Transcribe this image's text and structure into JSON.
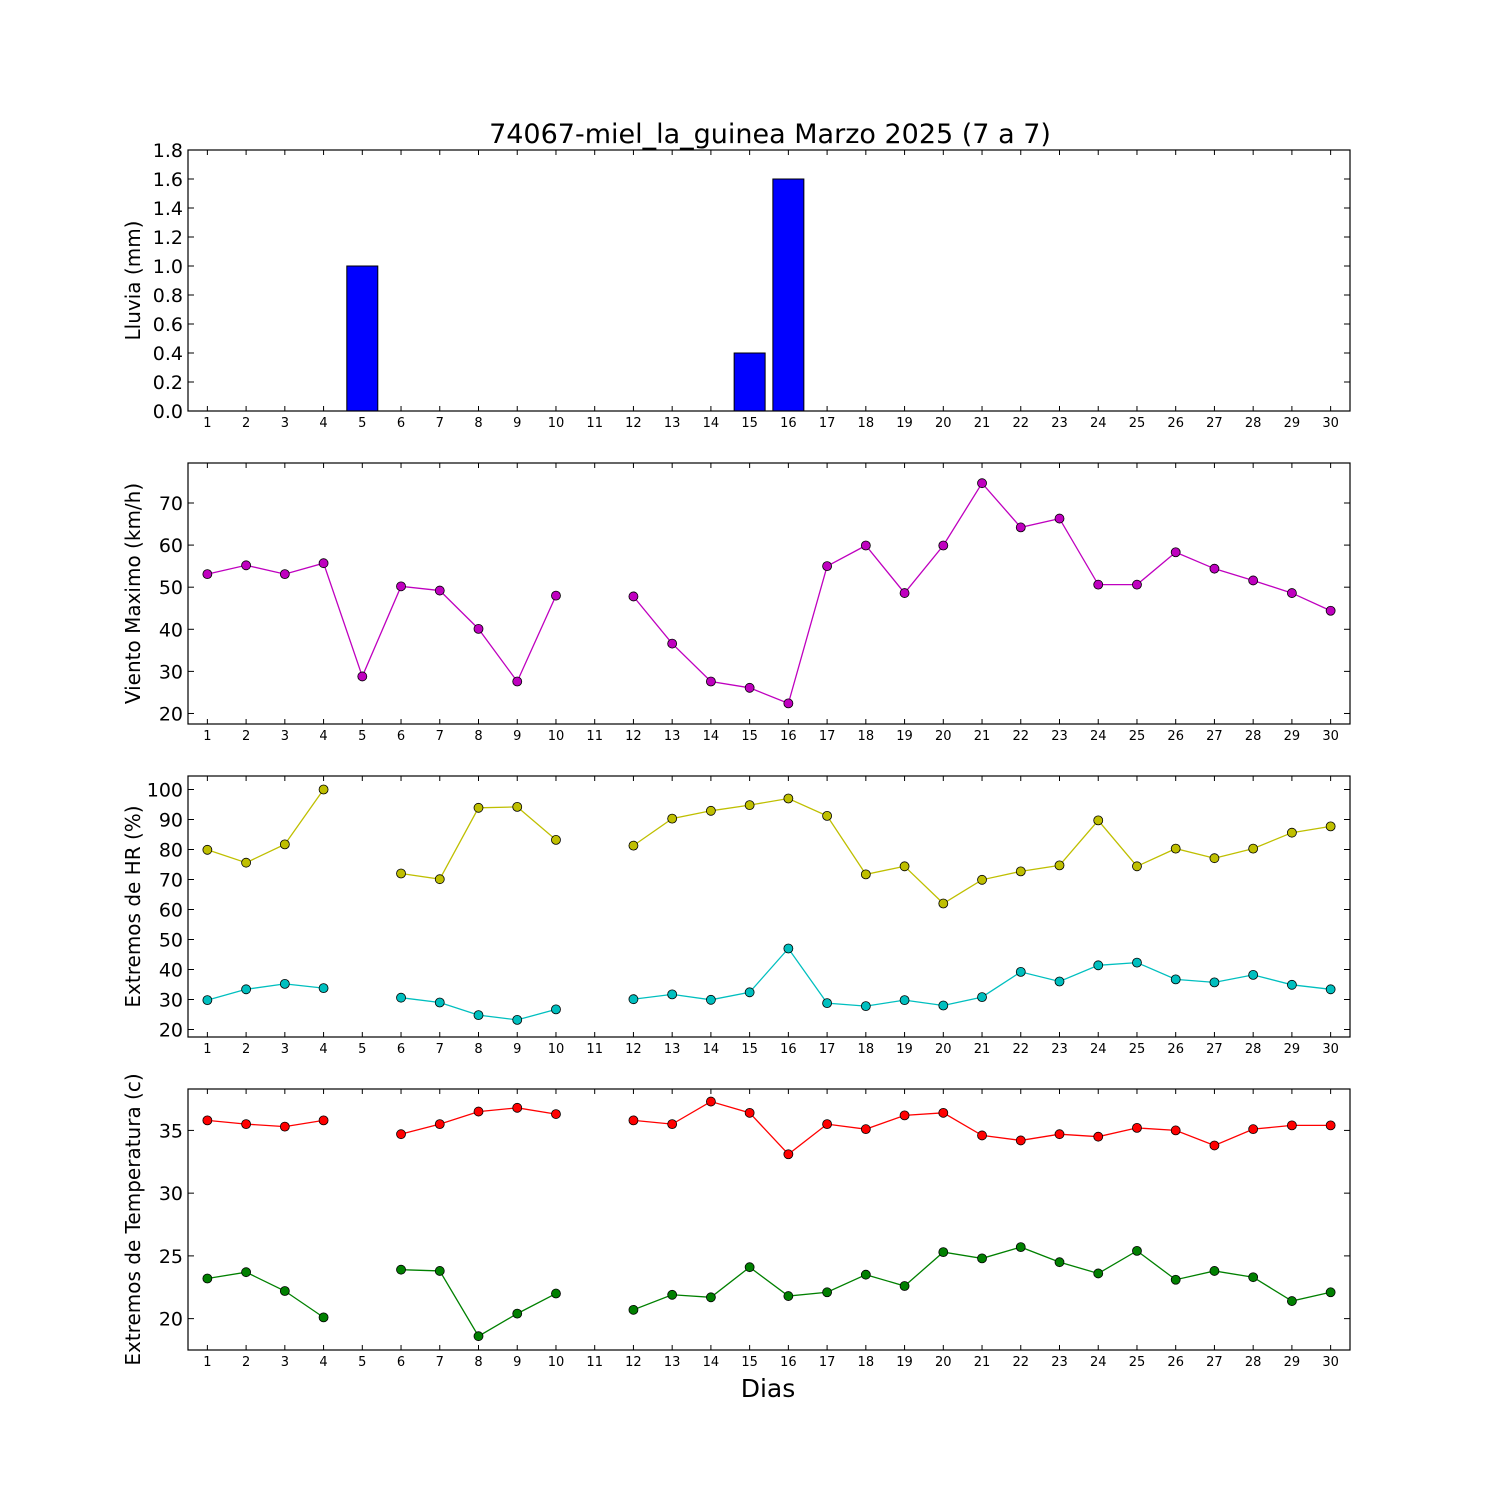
{
  "figure": {
    "title": "74067-miel_la_guinea Marzo 2025  (7 a 7)",
    "xlabel": "Dias"
  },
  "chart_data": [
    {
      "type": "bar",
      "ylabel": "Lluvia (mm)",
      "x": [
        1,
        2,
        3,
        4,
        5,
        6,
        7,
        8,
        9,
        10,
        11,
        12,
        13,
        14,
        15,
        16,
        17,
        18,
        19,
        20,
        21,
        22,
        23,
        24,
        25,
        26,
        27,
        28,
        29,
        30
      ],
      "values": [
        0,
        0,
        0,
        0,
        1.0,
        0,
        0,
        0,
        0,
        0,
        0,
        0,
        0,
        0,
        0.4,
        1.6,
        0,
        0,
        0,
        0,
        0,
        0,
        0,
        0,
        0,
        0,
        0,
        0,
        0,
        0
      ],
      "ylim": [
        0,
        1.8
      ],
      "yticks": [
        "0.0",
        "0.2",
        "0.4",
        "0.6",
        "0.8",
        "1.0",
        "1.2",
        "1.4",
        "1.6",
        "1.8"
      ],
      "color": "#0000ff"
    },
    {
      "type": "line",
      "ylabel": "Viento Maximo (km/h)",
      "x": [
        1,
        2,
        3,
        4,
        5,
        6,
        7,
        8,
        9,
        10,
        11,
        12,
        13,
        14,
        15,
        16,
        17,
        18,
        19,
        20,
        21,
        22,
        23,
        24,
        25,
        26,
        27,
        28,
        29,
        30
      ],
      "ylim": [
        17.5,
        79.5
      ],
      "yticks": [
        "20",
        "30",
        "40",
        "50",
        "60",
        "70"
      ],
      "series": [
        {
          "values": [
            53.1,
            55.2,
            53.1,
            55.7,
            28.8,
            50.2,
            49.2,
            40.1,
            27.6,
            48.0,
            null,
            47.8,
            36.6,
            27.6,
            26.1,
            22.4,
            55.0,
            59.9,
            48.6,
            59.9,
            74.7,
            64.2,
            66.3,
            50.6,
            50.6,
            58.3,
            54.4,
            51.6,
            48.6,
            44.4
          ],
          "color": "#bf00bf"
        }
      ]
    },
    {
      "type": "line",
      "ylabel": "Extremos de HR (%)",
      "x": [
        1,
        2,
        3,
        4,
        5,
        6,
        7,
        8,
        9,
        10,
        11,
        12,
        13,
        14,
        15,
        16,
        17,
        18,
        19,
        20,
        21,
        22,
        23,
        24,
        25,
        26,
        27,
        28,
        29,
        30
      ],
      "ylim": [
        17.5,
        104.5
      ],
      "yticks": [
        "20",
        "30",
        "40",
        "50",
        "60",
        "70",
        "80",
        "90",
        "100"
      ],
      "series": [
        {
          "values": [
            79.9,
            75.6,
            81.7,
            100,
            null,
            72.0,
            70.1,
            93.9,
            94.2,
            83.2,
            null,
            81.3,
            90.3,
            92.9,
            94.8,
            97.0,
            91.2,
            71.7,
            74.4,
            62.0,
            69.9,
            72.7,
            74.7,
            89.7,
            74.4,
            80.3,
            77.1,
            80.3,
            85.6,
            87.7
          ],
          "color": "#bfbf00"
        },
        {
          "values": [
            29.8,
            33.4,
            35.2,
            33.8,
            null,
            30.6,
            29.0,
            24.8,
            23.2,
            26.7,
            null,
            30.1,
            31.7,
            29.9,
            32.4,
            47.0,
            28.8,
            27.8,
            29.8,
            28.0,
            30.8,
            39.2,
            36.0,
            41.4,
            42.3,
            36.7,
            35.7,
            38.2,
            34.9,
            33.4
          ],
          "color": "#00bfbf"
        }
      ]
    },
    {
      "type": "line",
      "ylabel": "Extremos de Temperatura (c)",
      "x": [
        1,
        2,
        3,
        4,
        5,
        6,
        7,
        8,
        9,
        10,
        11,
        12,
        13,
        14,
        15,
        16,
        17,
        18,
        19,
        20,
        21,
        22,
        23,
        24,
        25,
        26,
        27,
        28,
        29,
        30
      ],
      "ylim": [
        17.5,
        38.3
      ],
      "yticks": [
        "20",
        "25",
        "30",
        "35"
      ],
      "series": [
        {
          "values": [
            35.8,
            35.5,
            35.3,
            35.8,
            null,
            34.7,
            35.5,
            36.5,
            36.8,
            36.3,
            null,
            35.8,
            35.5,
            37.3,
            36.4,
            33.1,
            35.5,
            35.1,
            36.2,
            36.4,
            34.6,
            34.2,
            34.7,
            34.5,
            35.2,
            35.0,
            33.8,
            35.1,
            35.4,
            35.4
          ],
          "color": "#ff0000"
        },
        {
          "values": [
            23.2,
            23.7,
            22.2,
            20.1,
            null,
            23.9,
            23.8,
            18.6,
            20.4,
            22.0,
            null,
            20.7,
            21.9,
            21.7,
            24.1,
            21.8,
            22.1,
            23.5,
            22.6,
            25.3,
            24.8,
            25.7,
            24.5,
            23.6,
            25.4,
            23.1,
            23.8,
            23.3,
            21.4,
            22.1
          ],
          "color": "#008000"
        }
      ]
    }
  ]
}
